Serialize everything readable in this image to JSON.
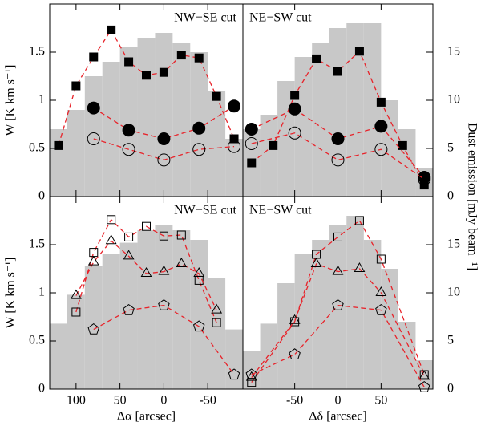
{
  "chart_data": [
    {
      "type": "line",
      "title": "NW−SE cut",
      "y_label": "W [K km s⁻¹]",
      "xlim": [
        130,
        -90
      ],
      "xticks": [
        100,
        50,
        0,
        -50
      ],
      "show_xtick_labels": false,
      "ylim": [
        0,
        2
      ],
      "yticks": [
        0,
        0.5,
        1,
        1.5
      ],
      "y2lim": [
        0,
        20
      ],
      "bins": [
        130,
        110,
        90,
        70,
        50,
        30,
        10,
        -10,
        -30,
        -50,
        -70,
        -90
      ],
      "dust_values": [
        7,
        9,
        12.5,
        14,
        15.5,
        16.5,
        17,
        16,
        15,
        11,
        6
      ],
      "dust_color": "#c8c8c8",
      "series": [
        {
          "marker": "square-filled",
          "color": "#e8232a",
          "x": [
            120,
            100,
            80,
            60,
            40,
            20,
            0,
            -20,
            -40,
            -60,
            -80
          ],
          "values": [
            0.53,
            1.15,
            1.45,
            1.73,
            1.4,
            1.26,
            1.29,
            1.47,
            1.44,
            1.04,
            0.6
          ]
        },
        {
          "marker": "circle-filled",
          "color": "#e8232a",
          "x": [
            80,
            40,
            0,
            -40,
            -80
          ],
          "values": [
            0.92,
            0.69,
            0.6,
            0.71,
            0.94
          ]
        },
        {
          "marker": "circle-open",
          "color": "#e8232a",
          "x": [
            80,
            40,
            0,
            -40,
            -80
          ],
          "values": [
            0.6,
            0.49,
            0.38,
            0.49,
            0.52
          ]
        }
      ]
    },
    {
      "type": "line",
      "title": "NE−SW cut",
      "y2_label": "Dust emission [mJy beam⁻¹]",
      "xlim": [
        -110,
        110
      ],
      "xticks": [
        -50,
        0,
        50
      ],
      "show_xtick_labels": false,
      "ylim": [
        0,
        2
      ],
      "y2lim": [
        0,
        20
      ],
      "y2ticks": [
        0,
        5,
        10,
        15
      ],
      "bins": [
        -110,
        -90,
        -70,
        -50,
        -30,
        -10,
        10,
        30,
        50,
        70,
        90,
        110
      ],
      "dust_values": [
        7,
        8.5,
        12,
        14.5,
        16,
        17.5,
        18,
        18,
        10,
        7,
        3
      ],
      "dust_color": "#c8c8c8",
      "series": [
        {
          "marker": "square-filled",
          "color": "#e8232a",
          "x": [
            -100,
            -75,
            -50,
            -25,
            0,
            25,
            50,
            75,
            100
          ],
          "values": [
            0.35,
            0.53,
            1.05,
            1.43,
            1.3,
            1.51,
            0.98,
            0.53,
            0.12
          ]
        },
        {
          "marker": "circle-filled",
          "color": "#e8232a",
          "x": [
            -100,
            -50,
            0,
            50,
            100
          ],
          "values": [
            0.7,
            0.91,
            0.6,
            0.73,
            0.2
          ]
        },
        {
          "marker": "circle-open",
          "color": "#e8232a",
          "x": [
            -100,
            -50,
            0,
            50,
            100
          ],
          "values": [
            0.55,
            0.66,
            0.38,
            0.49,
            0.18
          ]
        }
      ]
    },
    {
      "type": "line",
      "title": "NW−SE cut",
      "y_label": "W [K km s⁻¹]",
      "x_label": "Δα [arcsec]",
      "xlim": [
        130,
        -90
      ],
      "xticks": [
        100,
        50,
        0,
        -50
      ],
      "show_xtick_labels": true,
      "ylim": [
        0,
        2
      ],
      "yticks": [
        0,
        0.5,
        1,
        1.5
      ],
      "y2lim": [
        0,
        20
      ],
      "bins": [
        130,
        110,
        90,
        70,
        50,
        30,
        10,
        -10,
        -30,
        -50,
        -70,
        -90
      ],
      "dust_values": [
        6.8,
        9.8,
        12.8,
        14,
        15.2,
        16.5,
        17,
        16.5,
        15.5,
        11.5,
        6.2
      ],
      "dust_color": "#c8c8c8",
      "series": [
        {
          "marker": "square-open",
          "color": "#e8232a",
          "x": [
            100,
            80,
            60,
            40,
            20,
            0,
            -20,
            -40,
            -60
          ],
          "values": [
            0.8,
            1.42,
            1.76,
            1.58,
            1.69,
            1.59,
            1.6,
            1.13,
            0.69
          ]
        },
        {
          "marker": "triangle-open",
          "color": "#e8232a",
          "x": [
            100,
            80,
            60,
            40,
            20,
            0,
            -20,
            -40,
            -60
          ],
          "values": [
            0.97,
            1.32,
            1.54,
            1.38,
            1.2,
            1.22,
            1.3,
            1.2,
            0.82
          ]
        },
        {
          "marker": "pentagon-open",
          "color": "#e8232a",
          "x": [
            80,
            40,
            0,
            -40,
            -80
          ],
          "values": [
            0.62,
            0.82,
            0.87,
            0.65,
            0.15
          ]
        }
      ]
    },
    {
      "type": "line",
      "title": "NE−SW cut",
      "x_label": "Δδ [arcsec]",
      "xlim": [
        -110,
        110
      ],
      "xticks": [
        -50,
        0,
        50
      ],
      "show_xtick_labels": true,
      "ylim": [
        0,
        2
      ],
      "y2lim": [
        0,
        20
      ],
      "y2ticks": [
        0,
        5,
        10,
        15
      ],
      "bins": [
        -110,
        -90,
        -70,
        -50,
        -30,
        -10,
        10,
        30,
        50,
        70,
        90,
        110
      ],
      "dust_values": [
        4,
        6.8,
        11,
        14,
        15.5,
        17,
        18,
        15.5,
        12.5,
        7,
        3
      ],
      "dust_color": "#c8c8c8",
      "series": [
        {
          "marker": "square-open",
          "color": "#e8232a",
          "x": [
            -100,
            -50,
            -25,
            0,
            25,
            50,
            100
          ],
          "values": [
            0.07,
            0.7,
            1.4,
            1.58,
            1.75,
            1.35,
            0.15
          ]
        },
        {
          "marker": "triangle-open",
          "color": "#e8232a",
          "x": [
            -100,
            -50,
            -25,
            0,
            25,
            50,
            100
          ],
          "values": [
            0.12,
            0.71,
            1.3,
            1.22,
            1.25,
            1.0,
            0.13
          ]
        },
        {
          "marker": "pentagon-open",
          "color": "#e8232a",
          "x": [
            -100,
            -50,
            0,
            50,
            100
          ],
          "values": [
            0.15,
            0.36,
            0.87,
            0.82,
            0.02
          ]
        }
      ]
    }
  ]
}
